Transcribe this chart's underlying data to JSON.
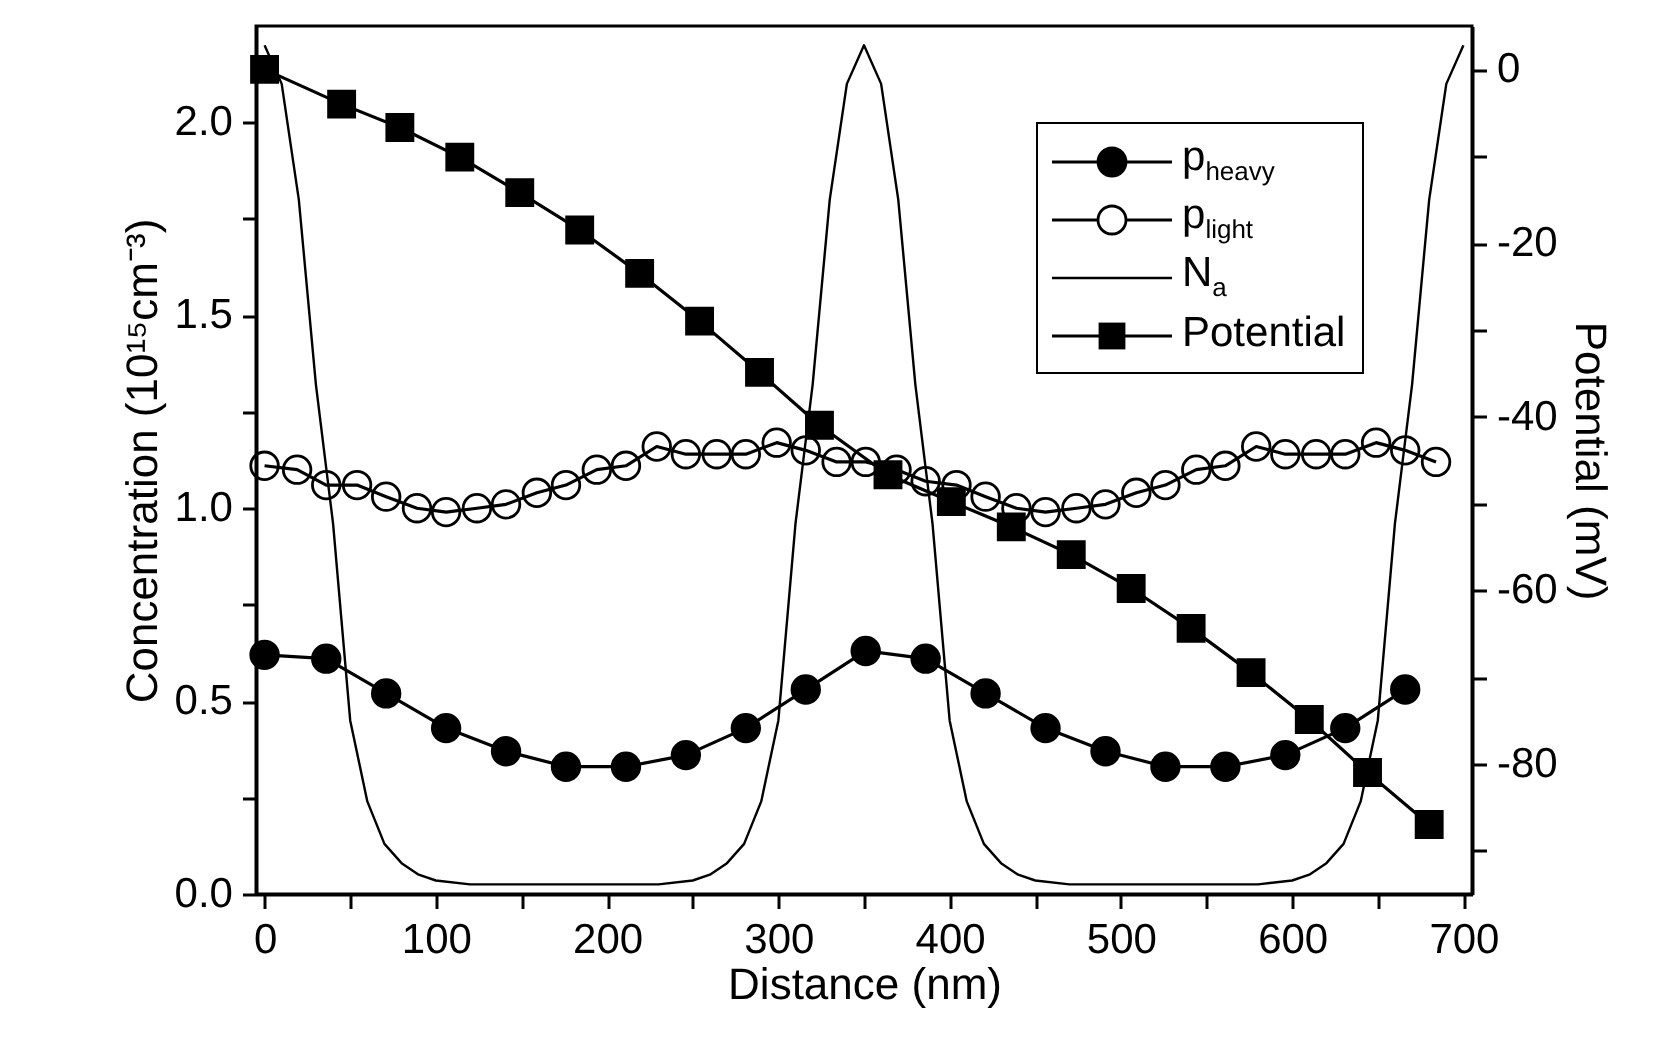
{
  "chart_data": {
    "type": "line",
    "xlabel": "Distance (nm)",
    "ylabel": "Concentration (10¹⁵cm⁻³)",
    "y2label": "Potential (mV)",
    "xlim": [
      -5,
      705
    ],
    "xticks": [
      0,
      {
        "value": 50,
        "label": null
      },
      100,
      {
        "value": 150,
        "label": null
      },
      200,
      {
        "value": 250,
        "label": null
      },
      300,
      {
        "value": 350,
        "label": null
      },
      400,
      {
        "value": 450,
        "label": null
      },
      500,
      {
        "value": 550,
        "label": null
      },
      600,
      {
        "value": 650,
        "label": null
      },
      700
    ],
    "ylim": [
      0,
      2.25
    ],
    "yticks": [
      {
        "value": 0,
        "label": "0.0"
      },
      {
        "value": 0.25,
        "label": null
      },
      0.5,
      {
        "value": 0.75,
        "label": null
      },
      {
        "value": 1,
        "label": "1.0"
      },
      {
        "value": 1.25,
        "label": null
      },
      1.5,
      {
        "value": 1.75,
        "label": null
      },
      {
        "value": 2,
        "label": "2.0"
      }
    ],
    "y2lim": [
      -95,
      5
    ],
    "y2ticks": [
      0,
      {
        "value": -10,
        "label": null
      },
      -20,
      {
        "value": -30,
        "label": null
      },
      -40,
      {
        "value": -50,
        "label": null
      },
      -60,
      {
        "value": -70,
        "label": null
      },
      -80,
      {
        "value": -90,
        "label": null
      }
    ],
    "legend": "top right",
    "grid": false,
    "series": [
      {
        "name": "p$_{heavy}$",
        "marker": "circle",
        "color": "#000000",
        "x": [
          0,
          36,
          71,
          106,
          141,
          176,
          211,
          246,
          281,
          316,
          351,
          386,
          421,
          456,
          491,
          526,
          561,
          596,
          631,
          666
        ],
        "values": [
          0.62,
          0.61,
          0.52,
          0.43,
          0.37,
          0.33,
          0.33,
          0.36,
          0.43,
          0.53,
          0.63,
          0.61,
          0.52,
          0.43,
          0.37,
          0.33,
          0.33,
          0.36,
          0.43,
          0.53
        ]
      },
      {
        "name": "p$_{light}$",
        "marker": "circle",
        "color": "#000000",
        "x": [
          0,
          19,
          36,
          54,
          71,
          89,
          106,
          124,
          141,
          159,
          176,
          194,
          211,
          229,
          246,
          264,
          281,
          299,
          316,
          334,
          351,
          369,
          386,
          404,
          421,
          439,
          456,
          474,
          491,
          509,
          526,
          544,
          561,
          579,
          596,
          614,
          631,
          649,
          666,
          684
        ],
        "values": [
          1.11,
          1.1,
          1.06,
          1.06,
          1.03,
          1.0,
          0.99,
          1.0,
          1.01,
          1.04,
          1.06,
          1.1,
          1.11,
          1.16,
          1.14,
          1.14,
          1.14,
          1.17,
          1.15,
          1.12,
          1.12,
          1.1,
          1.07,
          1.06,
          1.03,
          1.0,
          0.99,
          1.0,
          1.01,
          1.04,
          1.06,
          1.1,
          1.11,
          1.16,
          1.14,
          1.14,
          1.14,
          1.17,
          1.15,
          1.12
        ]
      },
      {
        "name": "N$_{a}$",
        "marker": "none",
        "color": "#000000",
        "x": [
          0,
          10,
          20,
          30,
          40,
          50,
          60,
          70,
          80,
          90,
          100,
          120,
          175,
          230,
          250,
          260,
          270,
          280,
          290,
          300,
          310,
          320,
          330,
          340,
          350,
          360,
          370,
          380,
          390,
          400,
          410,
          420,
          430,
          440,
          450,
          470,
          525,
          580,
          600,
          610,
          620,
          630,
          640,
          650,
          660,
          670,
          680,
          690,
          700
        ],
        "values": [
          2.2,
          2.1,
          1.8,
          1.32,
          0.96,
          0.45,
          0.24,
          0.13,
          0.08,
          0.05,
          0.035,
          0.025,
          0.025,
          0.025,
          0.035,
          0.05,
          0.08,
          0.13,
          0.24,
          0.45,
          0.96,
          1.32,
          1.8,
          2.1,
          2.2,
          2.1,
          1.8,
          1.32,
          0.96,
          0.45,
          0.24,
          0.13,
          0.08,
          0.05,
          0.035,
          0.025,
          0.025,
          0.025,
          0.035,
          0.05,
          0.08,
          0.13,
          0.24,
          0.45,
          0.96,
          1.32,
          1.8,
          2.1,
          2.2
        ]
      },
      {
        "name": "Potential",
        "marker": "square",
        "axis": "y2",
        "color": "#000000",
        "x": [
          0,
          45,
          79,
          114,
          149,
          184,
          219,
          254,
          289,
          324,
          364,
          401,
          436,
          471,
          506,
          541,
          576,
          610,
          644,
          680
        ],
        "values": [
          0,
          -4,
          -6.7,
          -10.1,
          -14.2,
          -18.5,
          -23.5,
          -29,
          -34.9,
          -41,
          -46.7,
          -49.8,
          -52.7,
          -55.9,
          -59.8,
          -64.4,
          -69.5,
          -74.9,
          -81,
          -87
        ]
      }
    ]
  }
}
